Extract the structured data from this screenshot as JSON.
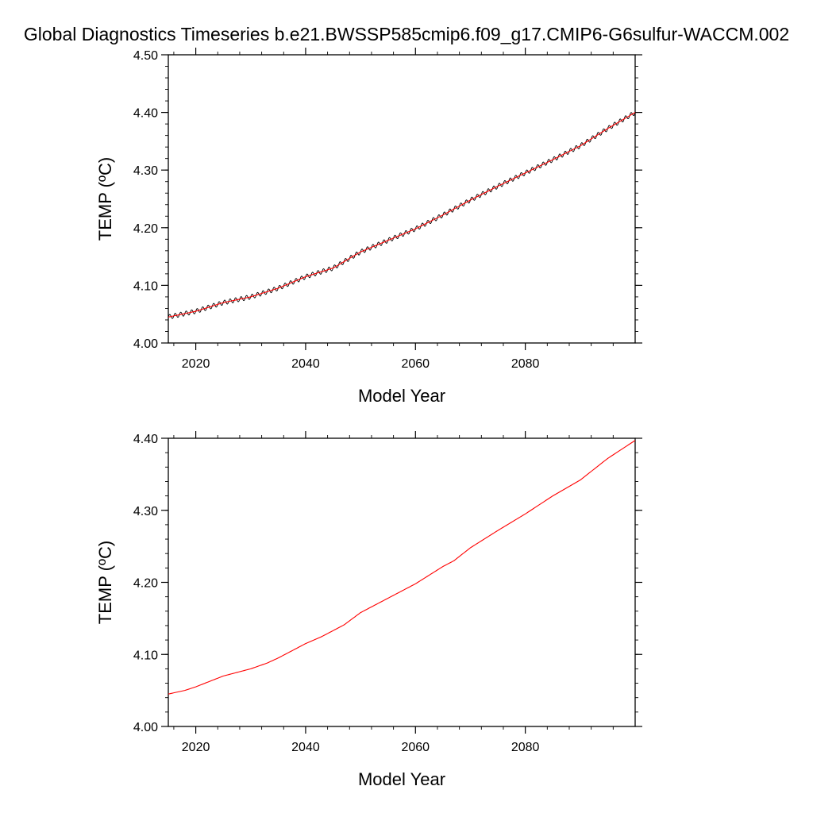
{
  "figure": {
    "title": "Global Diagnostics Timeseries b.e21.BWSSP585cmip6.f09_g17.CMIP6-G6sulfur-WACCM.002"
  },
  "chart_data": [
    {
      "type": "line",
      "title": "",
      "xlabel": "Model Year",
      "ylabel": "TEMP (ºC)",
      "xlim": [
        2015,
        2100
      ],
      "ylim": [
        4.0,
        4.5
      ],
      "x_ticks": [
        2020,
        2040,
        2060,
        2080
      ],
      "x_tick_labels": [
        "2020",
        "2040",
        "2060",
        "2080"
      ],
      "y_ticks": [
        4.0,
        4.1,
        4.2,
        4.3,
        4.4,
        4.5
      ],
      "y_tick_labels": [
        "4.00",
        "4.10",
        "4.20",
        "4.30",
        "4.40",
        "4.50"
      ],
      "grid": false,
      "legend": "none",
      "series": [
        {
          "color": "#000000",
          "seasonal_amplitude": 0.004,
          "x": [
            2015,
            2020,
            2025,
            2030,
            2035,
            2040,
            2045,
            2050,
            2055,
            2060,
            2065,
            2070,
            2075,
            2080,
            2085,
            2090,
            2095,
            2100
          ],
          "y": [
            4.045,
            4.055,
            4.07,
            4.08,
            4.095,
            4.115,
            4.13,
            4.158,
            4.178,
            4.198,
            4.222,
            4.248,
            4.272,
            4.295,
            4.318,
            4.342,
            4.372,
            4.4
          ]
        },
        {
          "color": "#ff0000",
          "x": [
            2015,
            2020,
            2025,
            2030,
            2035,
            2040,
            2045,
            2050,
            2055,
            2060,
            2065,
            2070,
            2075,
            2080,
            2085,
            2090,
            2095,
            2100
          ],
          "y": [
            4.045,
            4.055,
            4.07,
            4.08,
            4.095,
            4.115,
            4.13,
            4.158,
            4.178,
            4.198,
            4.222,
            4.248,
            4.272,
            4.295,
            4.318,
            4.342,
            4.372,
            4.4
          ]
        }
      ]
    },
    {
      "type": "line",
      "title": "",
      "xlabel": "Model Year",
      "ylabel": "TEMP (ºC)",
      "xlim": [
        2015,
        2100
      ],
      "ylim": [
        4.0,
        4.4
      ],
      "x_ticks": [
        2020,
        2040,
        2060,
        2080
      ],
      "x_tick_labels": [
        "2020",
        "2040",
        "2060",
        "2080"
      ],
      "y_ticks": [
        4.0,
        4.1,
        4.2,
        4.3,
        4.4
      ],
      "y_tick_labels": [
        "4.00",
        "4.10",
        "4.20",
        "4.30",
        "4.40"
      ],
      "grid": false,
      "legend": "none",
      "series": [
        {
          "color": "#ff0000",
          "x": [
            2015,
            2018,
            2020,
            2025,
            2030,
            2033,
            2035,
            2040,
            2043,
            2045,
            2047,
            2050,
            2055,
            2060,
            2065,
            2067,
            2070,
            2075,
            2080,
            2085,
            2090,
            2095,
            2100
          ],
          "y": [
            4.045,
            4.05,
            4.055,
            4.07,
            4.08,
            4.088,
            4.095,
            4.115,
            4.125,
            4.133,
            4.141,
            4.158,
            4.178,
            4.198,
            4.222,
            4.23,
            4.248,
            4.272,
            4.295,
            4.32,
            4.342,
            4.372,
            4.397
          ]
        }
      ]
    }
  ]
}
